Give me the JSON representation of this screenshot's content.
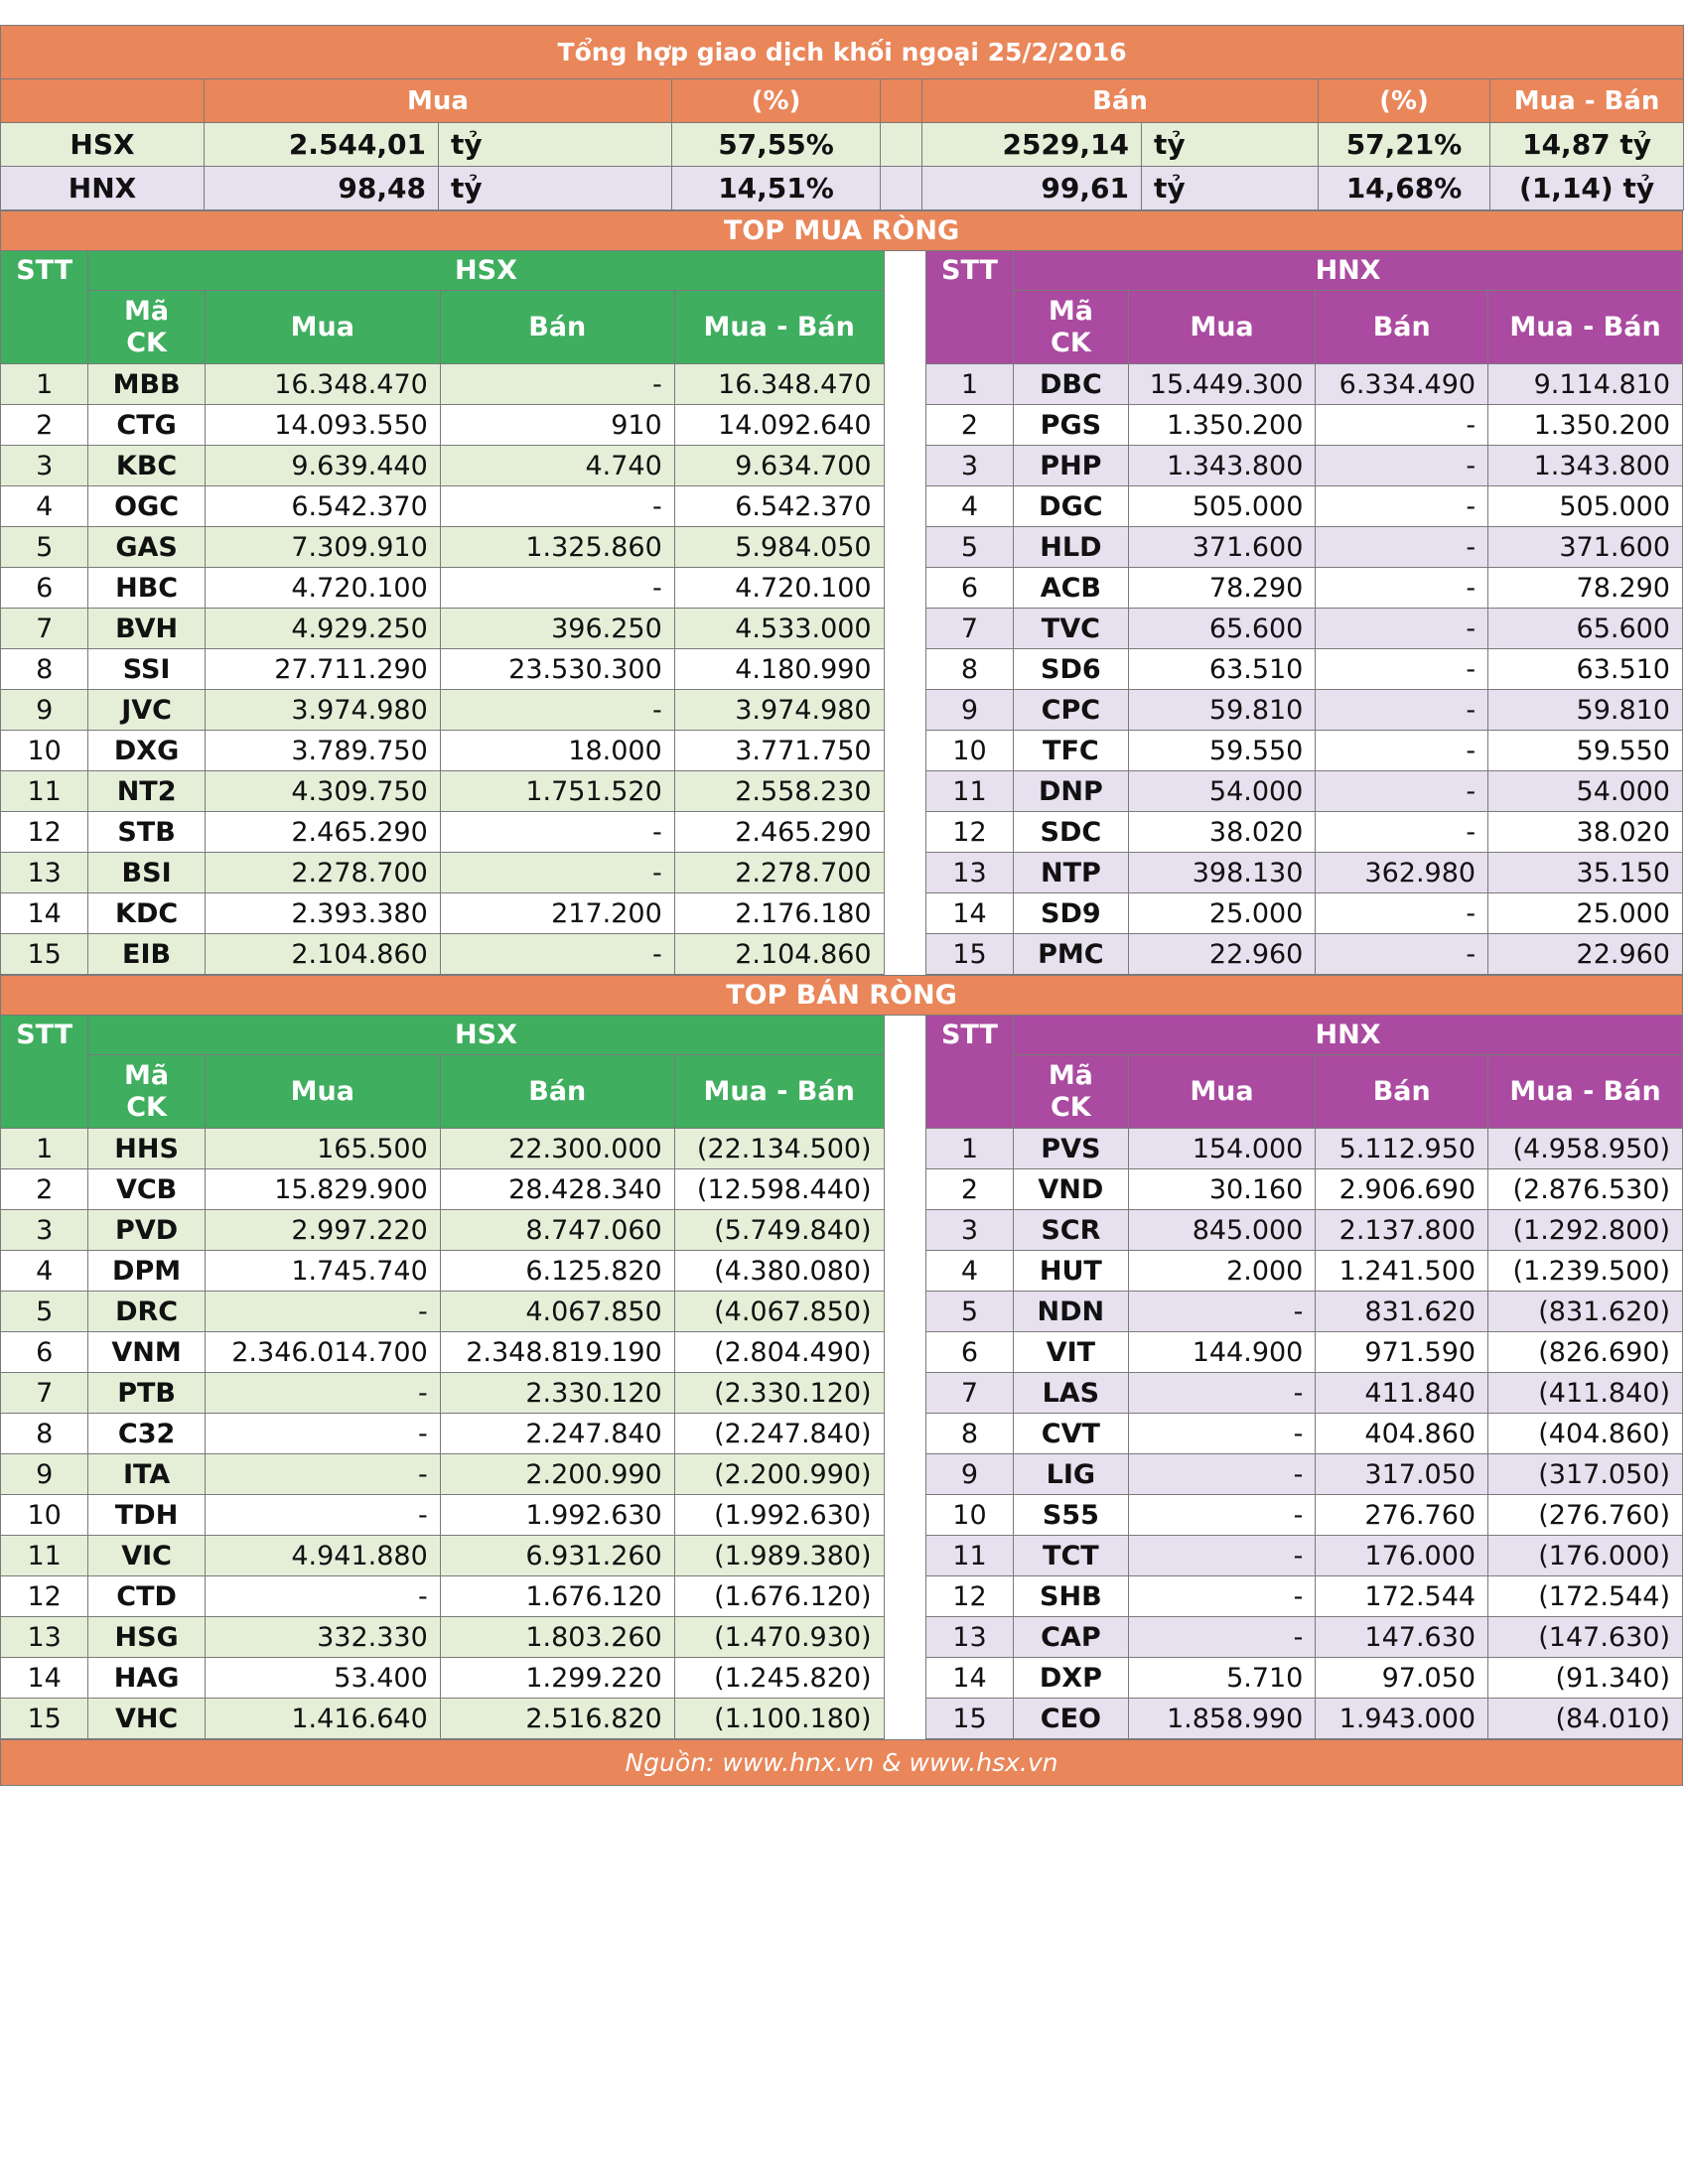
{
  "title": "Tổng hợp giao dịch khối ngoại 25/2/2016",
  "summary": {
    "headers": {
      "mua": "Mua",
      "pct": "(%)",
      "ban": "Bán",
      "net": "Mua - Bán"
    },
    "rows": [
      {
        "exchange": "HSX",
        "buy": "2.544,01",
        "buy_unit": "tỷ",
        "buy_pct": "57,55%",
        "sell": "2529,14",
        "sell_unit": "tỷ",
        "sell_pct": "57,21%",
        "net": "14,87 tỷ"
      },
      {
        "exchange": "HNX",
        "buy": "98,48",
        "buy_unit": "tỷ",
        "buy_pct": "14,51%",
        "sell": "99,61",
        "sell_unit": "tỷ",
        "sell_pct": "14,68%",
        "net": "(1,14) tỷ"
      }
    ]
  },
  "top_buy": {
    "title": "TOP MUA RÒNG",
    "hsx_label": "HSX",
    "hnx_label": "HNX",
    "col_stt": "STT",
    "col_ma": "Mã",
    "col_ck": "CK",
    "col_mua": "Mua",
    "col_ban": "Bán",
    "col_net": "Mua - Bán",
    "hsx": [
      [
        "1",
        "MBB",
        "16.348.470",
        "-",
        "16.348.470"
      ],
      [
        "2",
        "CTG",
        "14.093.550",
        "910",
        "14.092.640"
      ],
      [
        "3",
        "KBC",
        "9.639.440",
        "4.740",
        "9.634.700"
      ],
      [
        "4",
        "OGC",
        "6.542.370",
        "-",
        "6.542.370"
      ],
      [
        "5",
        "GAS",
        "7.309.910",
        "1.325.860",
        "5.984.050"
      ],
      [
        "6",
        "HBC",
        "4.720.100",
        "-",
        "4.720.100"
      ],
      [
        "7",
        "BVH",
        "4.929.250",
        "396.250",
        "4.533.000"
      ],
      [
        "8",
        "SSI",
        "27.711.290",
        "23.530.300",
        "4.180.990"
      ],
      [
        "9",
        "JVC",
        "3.974.980",
        "-",
        "3.974.980"
      ],
      [
        "10",
        "DXG",
        "3.789.750",
        "18.000",
        "3.771.750"
      ],
      [
        "11",
        "NT2",
        "4.309.750",
        "1.751.520",
        "2.558.230"
      ],
      [
        "12",
        "STB",
        "2.465.290",
        "-",
        "2.465.290"
      ],
      [
        "13",
        "BSI",
        "2.278.700",
        "-",
        "2.278.700"
      ],
      [
        "14",
        "KDC",
        "2.393.380",
        "217.200",
        "2.176.180"
      ],
      [
        "15",
        "EIB",
        "2.104.860",
        "-",
        "2.104.860"
      ]
    ],
    "hnx": [
      [
        "1",
        "DBC",
        "15.449.300",
        "6.334.490",
        "9.114.810"
      ],
      [
        "2",
        "PGS",
        "1.350.200",
        "-",
        "1.350.200"
      ],
      [
        "3",
        "PHP",
        "1.343.800",
        "-",
        "1.343.800"
      ],
      [
        "4",
        "DGC",
        "505.000",
        "-",
        "505.000"
      ],
      [
        "5",
        "HLD",
        "371.600",
        "-",
        "371.600"
      ],
      [
        "6",
        "ACB",
        "78.290",
        "-",
        "78.290"
      ],
      [
        "7",
        "TVC",
        "65.600",
        "-",
        "65.600"
      ],
      [
        "8",
        "SD6",
        "63.510",
        "-",
        "63.510"
      ],
      [
        "9",
        "CPC",
        "59.810",
        "-",
        "59.810"
      ],
      [
        "10",
        "TFC",
        "59.550",
        "-",
        "59.550"
      ],
      [
        "11",
        "DNP",
        "54.000",
        "-",
        "54.000"
      ],
      [
        "12",
        "SDC",
        "38.020",
        "-",
        "38.020"
      ],
      [
        "13",
        "NTP",
        "398.130",
        "362.980",
        "35.150"
      ],
      [
        "14",
        "SD9",
        "25.000",
        "-",
        "25.000"
      ],
      [
        "15",
        "PMC",
        "22.960",
        "-",
        "22.960"
      ]
    ]
  },
  "top_sell": {
    "title": "TOP BÁN RÒNG",
    "hsx_label": "HSX",
    "hnx_label": "HNX",
    "col_stt": "STT",
    "col_ma": "Mã",
    "col_ck": "CK",
    "col_mua": "Mua",
    "col_ban": "Bán",
    "col_net": "Mua - Bán",
    "hsx": [
      [
        "1",
        "HHS",
        "165.500",
        "22.300.000",
        "(22.134.500)"
      ],
      [
        "2",
        "VCB",
        "15.829.900",
        "28.428.340",
        "(12.598.440)"
      ],
      [
        "3",
        "PVD",
        "2.997.220",
        "8.747.060",
        "(5.749.840)"
      ],
      [
        "4",
        "DPM",
        "1.745.740",
        "6.125.820",
        "(4.380.080)"
      ],
      [
        "5",
        "DRC",
        "-",
        "4.067.850",
        "(4.067.850)"
      ],
      [
        "6",
        "VNM",
        "2.346.014.700",
        "2.348.819.190",
        "(2.804.490)"
      ],
      [
        "7",
        "PTB",
        "-",
        "2.330.120",
        "(2.330.120)"
      ],
      [
        "8",
        "C32",
        "-",
        "2.247.840",
        "(2.247.840)"
      ],
      [
        "9",
        "ITA",
        "-",
        "2.200.990",
        "(2.200.990)"
      ],
      [
        "10",
        "TDH",
        "-",
        "1.992.630",
        "(1.992.630)"
      ],
      [
        "11",
        "VIC",
        "4.941.880",
        "6.931.260",
        "(1.989.380)"
      ],
      [
        "12",
        "CTD",
        "-",
        "1.676.120",
        "(1.676.120)"
      ],
      [
        "13",
        "HSG",
        "332.330",
        "1.803.260",
        "(1.470.930)"
      ],
      [
        "14",
        "HAG",
        "53.400",
        "1.299.220",
        "(1.245.820)"
      ],
      [
        "15",
        "VHC",
        "1.416.640",
        "2.516.820",
        "(1.100.180)"
      ]
    ],
    "hnx": [
      [
        "1",
        "PVS",
        "154.000",
        "5.112.950",
        "(4.958.950)"
      ],
      [
        "2",
        "VND",
        "30.160",
        "2.906.690",
        "(2.876.530)"
      ],
      [
        "3",
        "SCR",
        "845.000",
        "2.137.800",
        "(1.292.800)"
      ],
      [
        "4",
        "HUT",
        "2.000",
        "1.241.500",
        "(1.239.500)"
      ],
      [
        "5",
        "NDN",
        "-",
        "831.620",
        "(831.620)"
      ],
      [
        "6",
        "VIT",
        "144.900",
        "971.590",
        "(826.690)"
      ],
      [
        "7",
        "LAS",
        "-",
        "411.840",
        "(411.840)"
      ],
      [
        "8",
        "CVT",
        "-",
        "404.860",
        "(404.860)"
      ],
      [
        "9",
        "LIG",
        "-",
        "317.050",
        "(317.050)"
      ],
      [
        "10",
        "S55",
        "-",
        "276.760",
        "(276.760)"
      ],
      [
        "11",
        "TCT",
        "-",
        "176.000",
        "(176.000)"
      ],
      [
        "12",
        "SHB",
        "-",
        "172.544",
        "(172.544)"
      ],
      [
        "13",
        "CAP",
        "-",
        "147.630",
        "(147.630)"
      ],
      [
        "14",
        "DXP",
        "5.710",
        "97.050",
        "(91.340)"
      ],
      [
        "15",
        "CEO",
        "1.858.990",
        "1.943.000",
        "(84.010)"
      ]
    ]
  },
  "footer": {
    "source": "Nguồn: www.hnx.vn    &    www.hsx.vn"
  },
  "colors": {
    "orange": "#e9865a",
    "green": "#3fae5f",
    "purple": "#aa4aa0",
    "green_row": "#e5efd8",
    "purple_row": "#e6e0ef"
  }
}
